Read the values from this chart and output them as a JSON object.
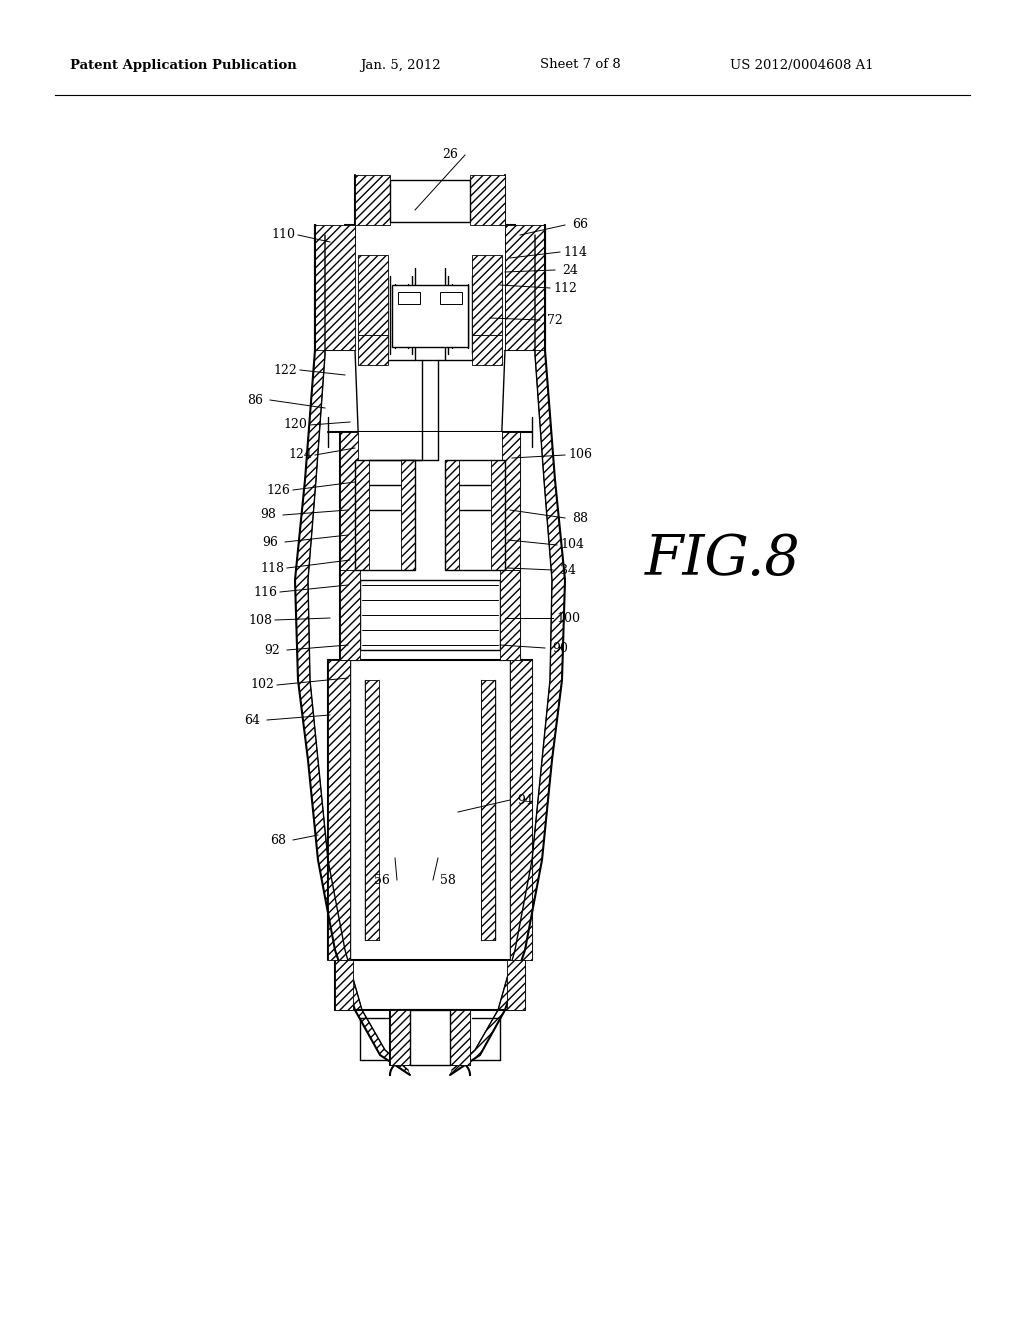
{
  "header_title": "Patent Application Publication",
  "header_date": "Jan. 5, 2012",
  "header_sheet": "Sheet 7 of 8",
  "header_patent": "US 2012/0004608 A1",
  "fig_label": "FIG.8",
  "bg_color": "#ffffff",
  "labels": [
    [
      "26",
      450,
      155,
      415,
      210,
      "right"
    ],
    [
      "110",
      283,
      235,
      330,
      242,
      "right"
    ],
    [
      "66",
      580,
      225,
      520,
      235,
      "left"
    ],
    [
      "114",
      575,
      252,
      510,
      258,
      "left"
    ],
    [
      "24",
      570,
      270,
      505,
      272,
      "left"
    ],
    [
      "112",
      565,
      288,
      500,
      285,
      "left"
    ],
    [
      "72",
      555,
      320,
      490,
      318,
      "left"
    ],
    [
      "122",
      285,
      370,
      345,
      375,
      "right"
    ],
    [
      "86",
      255,
      400,
      325,
      408,
      "right"
    ],
    [
      "120",
      295,
      425,
      350,
      422,
      "right"
    ],
    [
      "124",
      300,
      455,
      355,
      448,
      "right"
    ],
    [
      "106",
      580,
      455,
      512,
      458,
      "left"
    ],
    [
      "126",
      278,
      490,
      355,
      482,
      "right"
    ],
    [
      "98",
      268,
      515,
      348,
      510,
      "right"
    ],
    [
      "88",
      580,
      518,
      510,
      510,
      "left"
    ],
    [
      "96",
      270,
      542,
      348,
      535,
      "right"
    ],
    [
      "104",
      572,
      545,
      508,
      540,
      "left"
    ],
    [
      "118",
      272,
      568,
      350,
      560,
      "right"
    ],
    [
      "34",
      568,
      570,
      508,
      568,
      "left"
    ],
    [
      "116",
      265,
      592,
      348,
      585,
      "right"
    ],
    [
      "108",
      260,
      620,
      330,
      618,
      "right"
    ],
    [
      "100",
      568,
      618,
      505,
      618,
      "left"
    ],
    [
      "92",
      272,
      650,
      348,
      645,
      "right"
    ],
    [
      "90",
      560,
      648,
      500,
      645,
      "left"
    ],
    [
      "102",
      262,
      685,
      348,
      678,
      "right"
    ],
    [
      "64",
      252,
      720,
      330,
      715,
      "right"
    ],
    [
      "94",
      525,
      800,
      458,
      812,
      "left"
    ],
    [
      "68",
      278,
      840,
      318,
      835,
      "right"
    ],
    [
      "56",
      382,
      880,
      395,
      858,
      "right"
    ],
    [
      "58",
      448,
      880,
      438,
      858,
      "left"
    ]
  ]
}
